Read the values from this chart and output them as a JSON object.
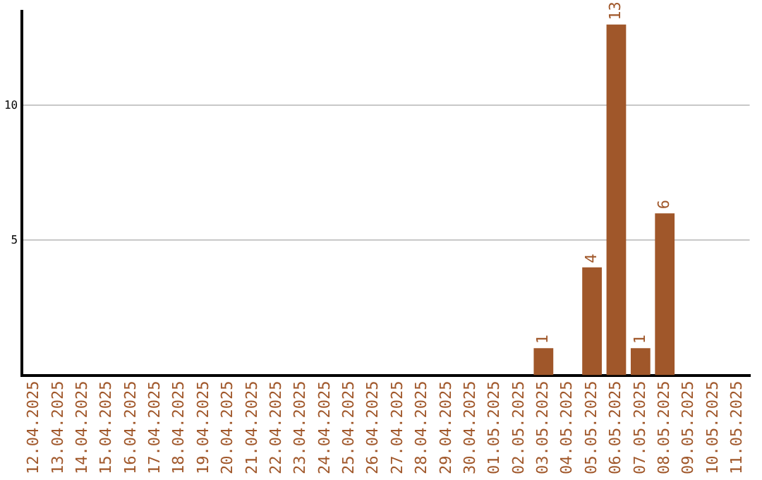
{
  "chart_data": {
    "type": "bar",
    "categories": [
      "12.04.2025",
      "13.04.2025",
      "14.04.2025",
      "15.04.2025",
      "16.04.2025",
      "17.04.2025",
      "18.04.2025",
      "19.04.2025",
      "20.04.2025",
      "21.04.2025",
      "22.04.2025",
      "23.04.2025",
      "24.04.2025",
      "25.04.2025",
      "26.04.2025",
      "27.04.2025",
      "28.04.2025",
      "29.04.2025",
      "30.04.2025",
      "01.05.2025",
      "02.05.2025",
      "03.05.2025",
      "04.05.2025",
      "05.05.2025",
      "06.05.2025",
      "07.05.2025",
      "08.05.2025",
      "09.05.2025",
      "10.05.2025",
      "11.05.2025"
    ],
    "values": [
      null,
      null,
      null,
      null,
      null,
      null,
      null,
      null,
      null,
      null,
      null,
      null,
      null,
      null,
      null,
      null,
      null,
      null,
      null,
      null,
      null,
      1,
      null,
      4,
      13,
      1,
      6,
      null,
      null,
      null
    ],
    "color": "#a0572a",
    "ylim": [
      0,
      13.5
    ],
    "yticks": [
      5,
      10
    ],
    "grid": "y",
    "data_labels": true,
    "legend": false
  }
}
